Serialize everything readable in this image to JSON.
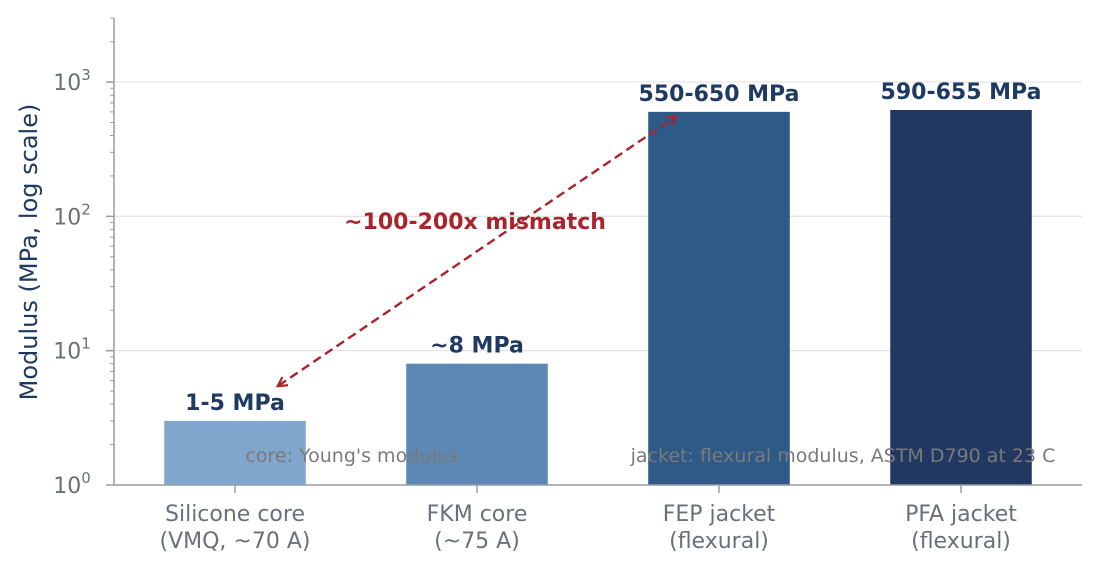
{
  "chart_data": {
    "type": "bar",
    "ylabel": "Modulus (MPa, log scale)",
    "yscale": "log",
    "ylim": [
      1,
      3000
    ],
    "y_ticks": [
      {
        "base": "10",
        "exp": "0",
        "value": 1
      },
      {
        "base": "10",
        "exp": "1",
        "value": 10
      },
      {
        "base": "10",
        "exp": "2",
        "value": 100
      },
      {
        "base": "10",
        "exp": "3",
        "value": 1000
      }
    ],
    "grid": "horizontal",
    "categories": [
      {
        "line1": "Silicone core",
        "line2": "(VMQ, ~70 A)"
      },
      {
        "line1": "FKM core",
        "line2": "(~75 A)"
      },
      {
        "line1": "FEP jacket",
        "line2": "(flexural)"
      },
      {
        "line1": "PFA jacket",
        "line2": "(flexural)"
      }
    ],
    "values": [
      3,
      8,
      600,
      620
    ],
    "data_labels": [
      "1-5 MPa",
      "~8 MPa",
      "550-650 MPa",
      "590-655 MPa"
    ],
    "colors": [
      "#80a6cd",
      "#5b88b5",
      "#2d5a88",
      "#203862"
    ],
    "annotation": {
      "text": "~100-200x mismatch",
      "color": "#a8262b",
      "arrow_from": {
        "category": 0,
        "value": 5.5
      },
      "arrow_to": {
        "category": 2,
        "value": 550
      }
    },
    "notes": [
      "core: Young's modulus",
      "jacket: flexural modulus, ASTM D790 at 23 C"
    ]
  }
}
